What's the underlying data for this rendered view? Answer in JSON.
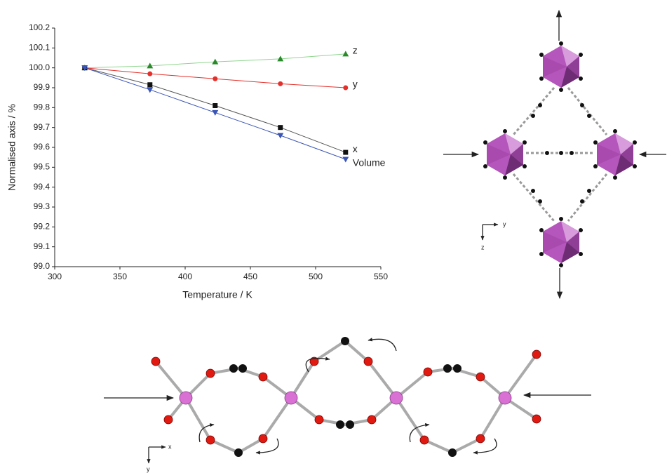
{
  "chart_data": {
    "type": "line",
    "x_label": "Temperature / K",
    "y_label": "Normalised axis / %",
    "x": [
      323,
      373,
      423,
      473,
      523
    ],
    "series": [
      {
        "name": "z",
        "color": "#2a8a2a",
        "line_color": "#8fd68f",
        "marker": "triangle-up",
        "values": [
          100.0,
          100.01,
          100.03,
          100.045,
          100.07
        ]
      },
      {
        "name": "y",
        "color": "#e3302b",
        "line_color": "#e3302b",
        "marker": "circle",
        "values": [
          100.0,
          99.97,
          99.945,
          99.92,
          99.9
        ]
      },
      {
        "name": "x",
        "color": "#111111",
        "line_color": "#555555",
        "marker": "square",
        "values": [
          100.0,
          99.915,
          99.81,
          99.7,
          99.575
        ]
      },
      {
        "name": "Volume",
        "color": "#3a55b5",
        "line_color": "#3a55b5",
        "marker": "triangle-down",
        "values": [
          100.0,
          99.89,
          99.775,
          99.66,
          99.54
        ]
      }
    ],
    "xlim": [
      300,
      550
    ],
    "xticks": [
      300,
      350,
      400,
      450,
      500,
      550
    ],
    "ylim": [
      99.0,
      100.2
    ],
    "yticks": [
      {
        "value": 99,
        "label": "99.0"
      },
      99.1,
      99.2,
      99.3,
      99.4,
      99.5,
      99.6,
      99.7,
      99.8,
      99.9,
      {
        "value": 100,
        "label": "100.0"
      },
      100.1,
      100.2
    ]
  },
  "diagrams": {
    "top_axis_labels": [
      "y",
      "z"
    ],
    "bottom_axis_labels": [
      "x",
      "y"
    ]
  }
}
